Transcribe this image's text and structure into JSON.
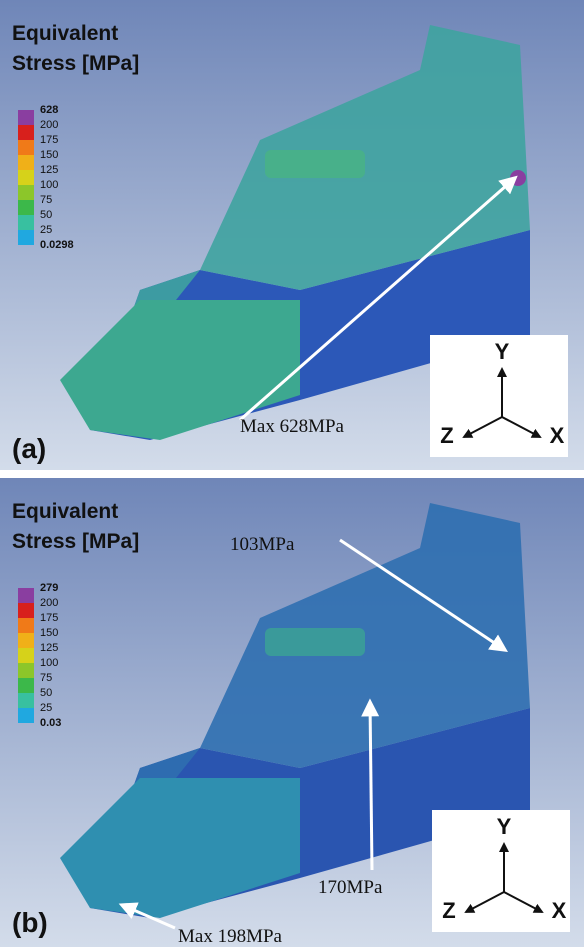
{
  "panels": [
    {
      "label": "(a)",
      "title": [
        "Equivalent",
        "Stress [MPa]"
      ],
      "legend": [
        "628",
        "200",
        "175",
        "150",
        "125",
        "100",
        "75",
        "50",
        "25",
        "0.0298"
      ],
      "annotations": [
        "Max 628MPa"
      ],
      "axes": {
        "y": "Y",
        "z": "Z",
        "x": "X"
      }
    },
    {
      "label": "(b)",
      "title": [
        "Equivalent",
        "Stress [MPa]"
      ],
      "legend": [
        "279",
        "200",
        "175",
        "150",
        "125",
        "100",
        "75",
        "50",
        "25",
        "0.03"
      ],
      "annotations": [
        "103MPa",
        "170MPa",
        "Max 198MPa"
      ],
      "axes": {
        "y": "Y",
        "z": "Z",
        "x": "X"
      }
    }
  ]
}
